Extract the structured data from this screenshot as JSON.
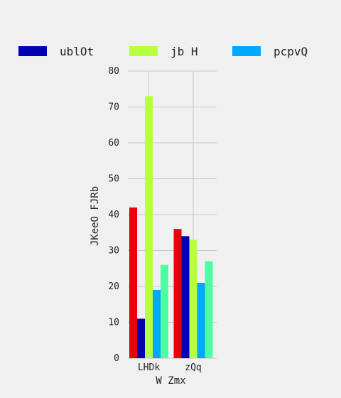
{
  "chart_data": {
    "type": "bar",
    "categories": [
      "LHDk",
      "zQq"
    ],
    "xlabel": "W Zmx",
    "ylabel": "JKeeO FJRb",
    "ylim": [
      0,
      80
    ],
    "yticks": [
      0,
      10,
      20,
      30,
      40,
      50,
      60,
      70,
      80
    ],
    "grid": true,
    "legend_position": "top",
    "series": [
      {
        "color": "#e8000b",
        "values": [
          42,
          36
        ]
      },
      {
        "name": "ublOt",
        "color": "#0000b4",
        "values": [
          11,
          34
        ]
      },
      {
        "name": "jb H",
        "color": "#b8ff40",
        "values": [
          73,
          33
        ]
      },
      {
        "name": "pcpvQ",
        "color": "#00a8ff",
        "values": [
          19,
          21
        ]
      },
      {
        "color": "#4cffa2",
        "values": [
          26,
          27
        ]
      }
    ]
  }
}
